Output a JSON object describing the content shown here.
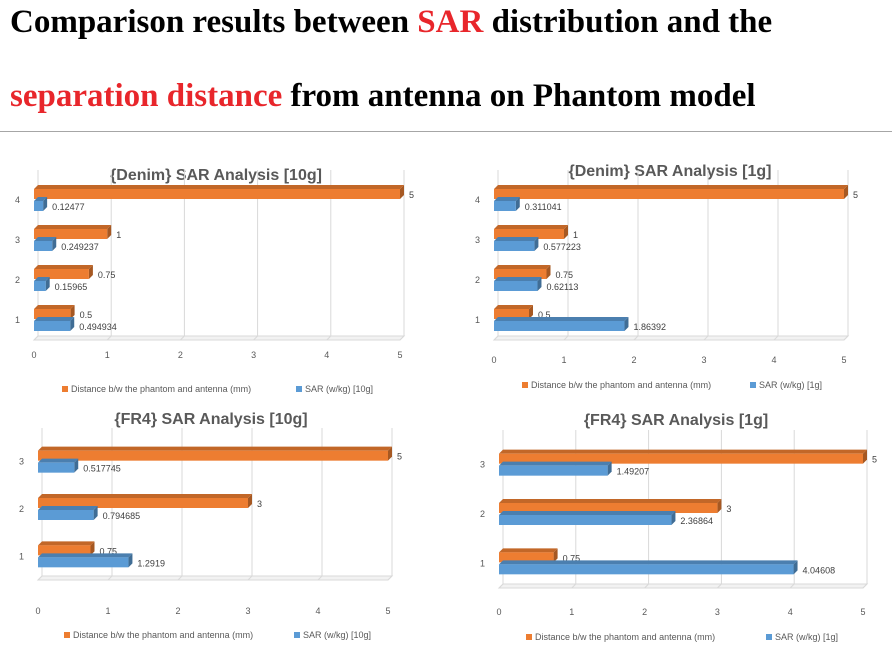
{
  "header": {
    "title_line1": {
      "before": "Comparison results between ",
      "highlight": "SAR",
      "after": " distribution and the"
    },
    "title_line2": {
      "highlight": "separation distance",
      "after": " from antenna on Phantom model"
    }
  },
  "colors": {
    "distance": "#ed7d31",
    "sar": "#5b9bd5",
    "accent": "#e8262b"
  },
  "chart_data": [
    {
      "id": "denim-10g",
      "type": "bar",
      "orientation": "horizontal",
      "title": "{Denim} SAR Analysis [10g]",
      "categories": [
        "1",
        "2",
        "3",
        "4"
      ],
      "xlim": [
        0,
        5
      ],
      "xticks": [
        "0",
        "1",
        "2",
        "3",
        "4",
        "5"
      ],
      "series": [
        {
          "name": "Distance b/w the phantom and antenna (mm)",
          "values": [
            0.5,
            0.75,
            1,
            5
          ],
          "labels": [
            "0.5",
            "0.75",
            "1",
            "5"
          ]
        },
        {
          "name": "SAR (w/kg) [10g]",
          "values": [
            0.494934,
            0.15965,
            0.249237,
            0.12477
          ],
          "labels": [
            "0.494934",
            "0.15965",
            "0.249237",
            "0.12477"
          ]
        }
      ],
      "legend": "bottom"
    },
    {
      "id": "denim-1g",
      "type": "bar",
      "orientation": "horizontal",
      "title": "{Denim} SAR Analysis [1g]",
      "categories": [
        "1",
        "2",
        "3",
        "4"
      ],
      "xlim": [
        0,
        5
      ],
      "xticks": [
        "0",
        "1",
        "2",
        "3",
        "4",
        "5"
      ],
      "series": [
        {
          "name": "Distance b/w the phantom and antenna (mm)",
          "values": [
            0.5,
            0.75,
            1,
            5
          ],
          "labels": [
            "0.5",
            "0.75",
            "1",
            "5"
          ]
        },
        {
          "name": "SAR (w/kg) [1g]",
          "values": [
            1.86392,
            0.62113,
            0.577223,
            0.311041
          ],
          "labels": [
            "1.86392",
            "0.62113",
            "0.577223",
            "0.311041"
          ]
        }
      ],
      "legend": "bottom"
    },
    {
      "id": "fr4-10g",
      "type": "bar",
      "orientation": "horizontal",
      "title": "{FR4} SAR Analysis [10g]",
      "categories": [
        "1",
        "2",
        "3"
      ],
      "xlim": [
        0,
        5
      ],
      "xticks": [
        "0",
        "1",
        "2",
        "3",
        "4",
        "5"
      ],
      "series": [
        {
          "name": "Distance b/w the phantom and antenna (mm)",
          "values": [
            0.75,
            3,
            5
          ],
          "labels": [
            "0.75",
            "3",
            "5"
          ]
        },
        {
          "name": "SAR (w/kg) [10g]",
          "values": [
            1.2919,
            0.794685,
            0.517745
          ],
          "labels": [
            "1.2919",
            "0.794685",
            "0.517745"
          ]
        }
      ],
      "legend": "bottom"
    },
    {
      "id": "fr4-1g",
      "type": "bar",
      "orientation": "horizontal",
      "title": "{FR4} SAR Analysis [1g]",
      "categories": [
        "1",
        "2",
        "3"
      ],
      "xlim": [
        0,
        5
      ],
      "xticks": [
        "0",
        "1",
        "2",
        "3",
        "4",
        "5"
      ],
      "series": [
        {
          "name": "Distance b/w the phantom and antenna (mm)",
          "values": [
            0.75,
            3,
            5
          ],
          "labels": [
            "0.75",
            "3",
            "5"
          ]
        },
        {
          "name": "SAR (w/kg) [1g]",
          "values": [
            4.04608,
            2.36864,
            1.49207
          ],
          "labels": [
            "4.04608",
            "2.36864",
            "1.49207"
          ]
        }
      ],
      "legend": "bottom"
    }
  ]
}
